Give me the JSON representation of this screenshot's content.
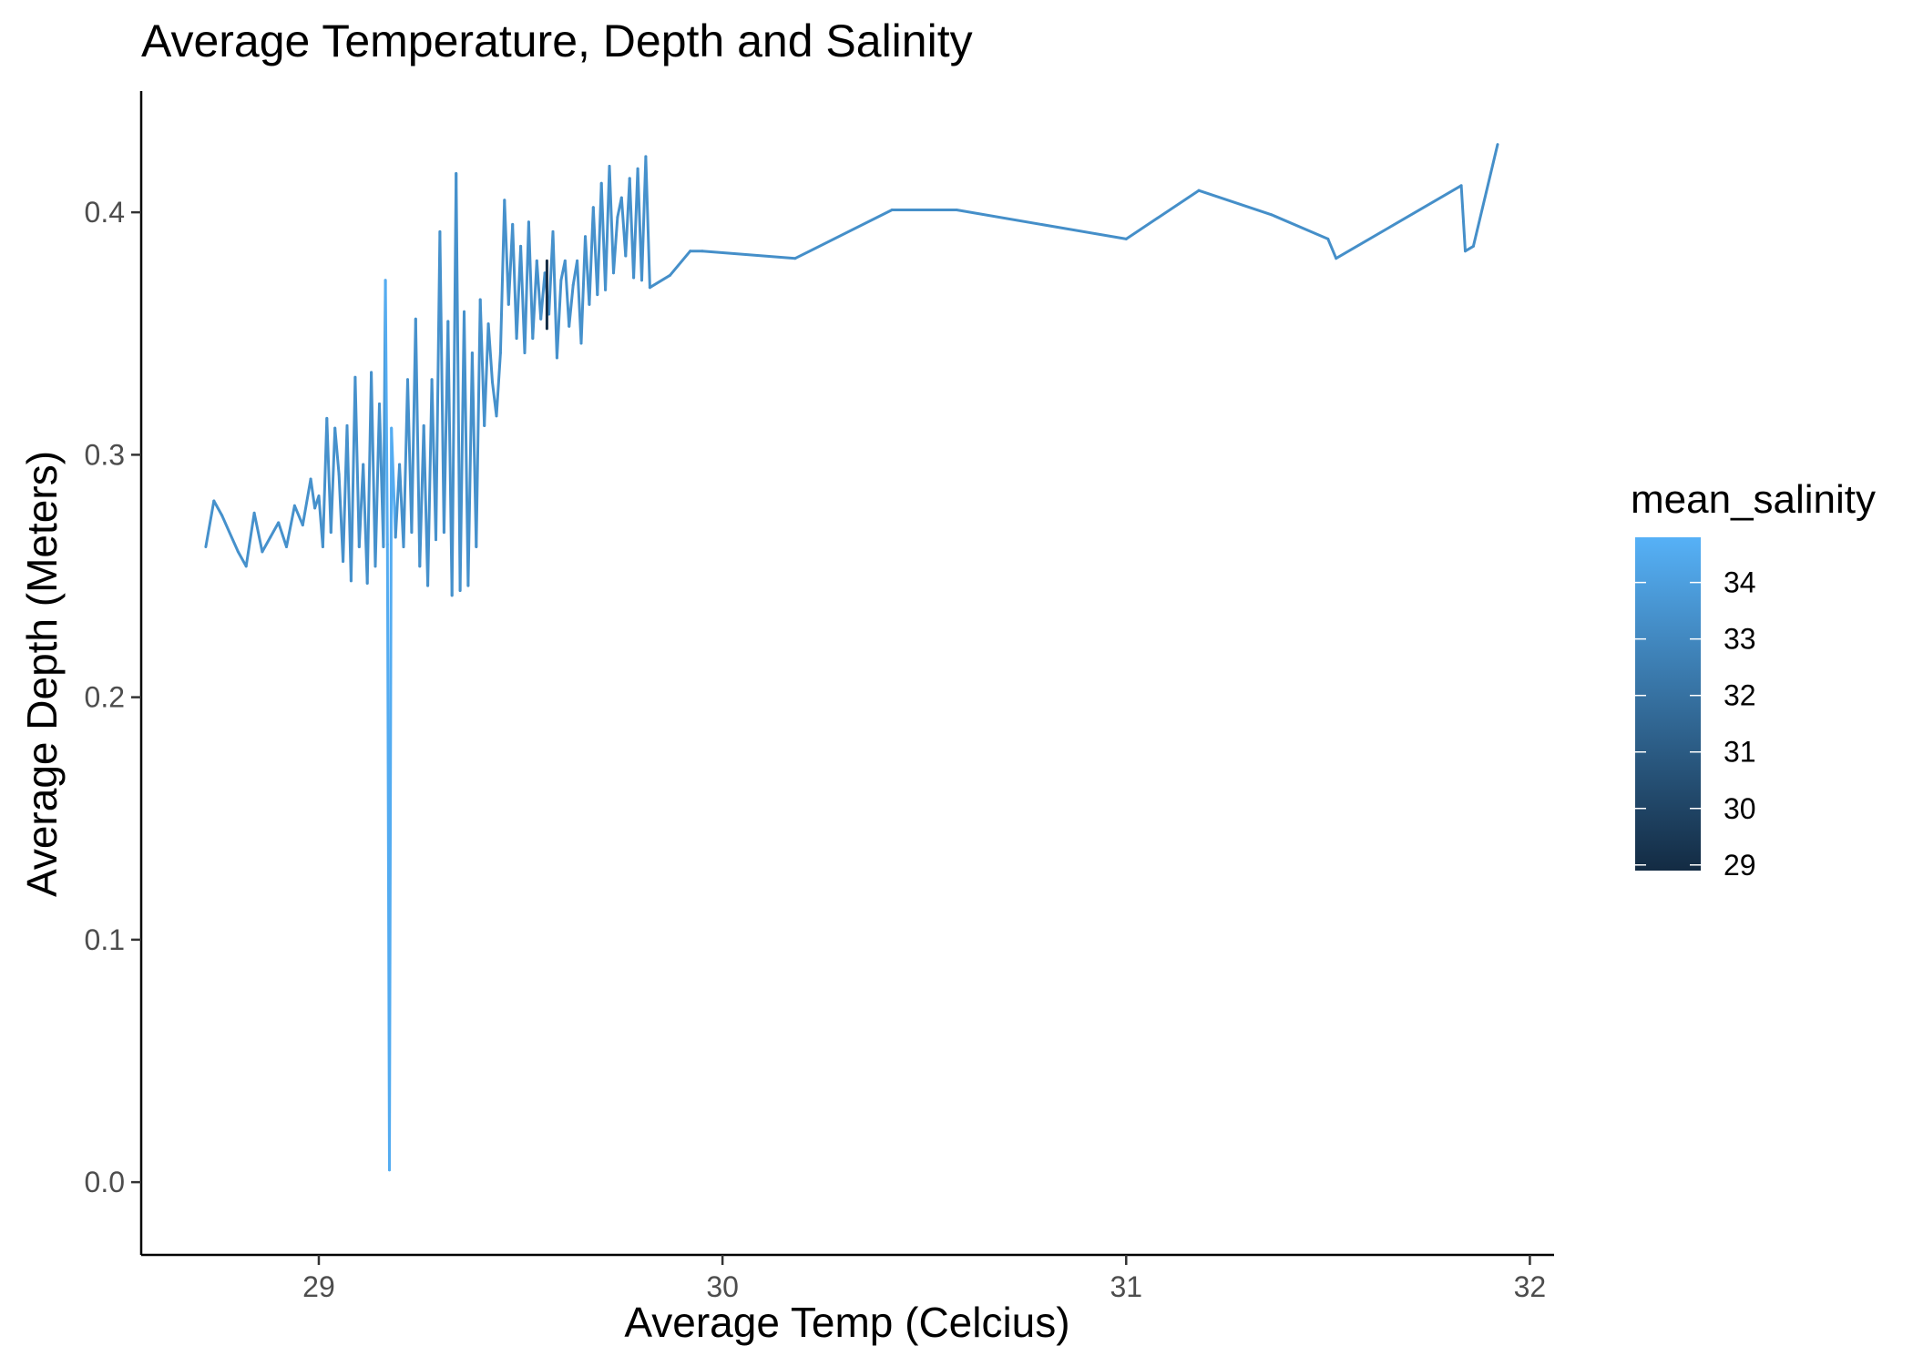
{
  "chart_data": {
    "type": "line",
    "title": "Average Temperature, Depth and Salinity",
    "xlabel": "Average Temp (Celcius)",
    "ylabel": "Average Depth (Meters)",
    "xlim": [
      28.56,
      32.06
    ],
    "ylim": [
      -0.03,
      0.45
    ],
    "x_ticks": [
      29,
      30,
      31,
      32
    ],
    "y_ticks": [
      0.0,
      0.1,
      0.2,
      0.3,
      0.4
    ],
    "x_tick_labels": [
      "29",
      "30",
      "31",
      "32"
    ],
    "y_tick_labels": [
      "0.0",
      "0.1",
      "0.2",
      "0.3",
      "0.4"
    ],
    "grid": false,
    "legend": {
      "title": "mean_salinity",
      "position": "right",
      "type": "colorbar",
      "range": [
        28.9,
        34.8
      ],
      "ticks": [
        29,
        30,
        31,
        32,
        33,
        34
      ],
      "tick_labels": [
        "29",
        "30",
        "31",
        "32",
        "33",
        "34"
      ],
      "color_low": "#132B43",
      "color_high": "#56B1F7"
    },
    "series": [
      {
        "x": [
          28.72,
          28.74,
          28.76,
          28.8,
          28.82,
          28.84,
          28.86,
          28.88,
          28.9,
          28.92,
          28.94,
          28.96,
          28.98,
          28.99,
          29.0,
          29.01,
          29.02,
          29.03,
          29.04,
          29.05,
          29.06,
          29.07,
          29.08,
          29.09,
          29.1,
          29.11,
          29.12,
          29.13,
          29.14,
          29.15,
          29.16,
          29.165,
          29.17,
          29.175,
          29.18,
          29.19,
          29.2,
          29.21,
          29.22,
          29.23,
          29.24,
          29.25,
          29.26,
          29.27,
          29.28,
          29.29,
          29.3,
          29.31,
          29.32,
          29.33,
          29.34,
          29.35,
          29.36,
          29.37,
          29.38,
          29.39,
          29.4,
          29.41,
          29.42,
          29.43,
          29.44,
          29.45,
          29.46,
          29.47,
          29.48,
          29.49,
          29.5,
          29.51,
          29.52,
          29.53,
          29.54,
          29.55,
          29.56,
          29.57,
          29.58,
          29.59,
          29.6,
          29.61,
          29.62,
          29.63,
          29.64,
          29.65,
          29.66,
          29.67,
          29.68,
          29.69,
          29.7,
          29.71,
          29.72,
          29.73,
          29.74,
          29.75,
          29.76,
          29.77,
          29.78,
          29.79,
          29.8,
          29.81,
          29.82,
          29.87,
          29.92,
          29.95,
          30.18,
          30.42,
          30.58,
          31.0,
          31.18,
          31.36,
          31.5,
          31.52,
          31.83,
          31.84,
          31.86,
          31.92
        ],
        "y": [
          0.262,
          0.281,
          0.275,
          0.26,
          0.254,
          0.276,
          0.26,
          0.266,
          0.272,
          0.262,
          0.279,
          0.271,
          0.29,
          0.278,
          0.283,
          0.262,
          0.315,
          0.268,
          0.311,
          0.292,
          0.256,
          0.312,
          0.248,
          0.332,
          0.262,
          0.296,
          0.247,
          0.334,
          0.254,
          0.321,
          0.262,
          0.372,
          0.263,
          0.005,
          0.311,
          0.266,
          0.296,
          0.262,
          0.331,
          0.268,
          0.356,
          0.254,
          0.312,
          0.246,
          0.331,
          0.265,
          0.392,
          0.268,
          0.355,
          0.242,
          0.416,
          0.244,
          0.359,
          0.246,
          0.342,
          0.262,
          0.364,
          0.312,
          0.354,
          0.33,
          0.316,
          0.342,
          0.405,
          0.362,
          0.395,
          0.348,
          0.386,
          0.342,
          0.396,
          0.348,
          0.38,
          0.356,
          0.375,
          0.358,
          0.392,
          0.34,
          0.372,
          0.38,
          0.353,
          0.37,
          0.38,
          0.346,
          0.39,
          0.362,
          0.402,
          0.366,
          0.412,
          0.368,
          0.419,
          0.375,
          0.398,
          0.406,
          0.382,
          0.414,
          0.373,
          0.418,
          0.372,
          0.423,
          0.369,
          0.374,
          0.384,
          0.384,
          0.381,
          0.401,
          0.401,
          0.389,
          0.409,
          0.399,
          0.389,
          0.381,
          0.411,
          0.384,
          0.386,
          0.428
        ],
        "salinity": [
          33.4,
          33.4,
          33.4,
          33.4,
          33.4,
          33.4,
          33.4,
          33.4,
          33.4,
          33.4,
          33.4,
          33.4,
          33.4,
          33.4,
          33.4,
          33.4,
          33.4,
          33.4,
          33.4,
          33.4,
          33.4,
          33.4,
          33.4,
          33.4,
          33.4,
          33.4,
          33.4,
          33.4,
          33.4,
          33.4,
          33.6,
          34.6,
          34.6,
          34.6,
          34.6,
          33.4,
          33.4,
          33.4,
          33.4,
          33.4,
          33.4,
          33.4,
          33.4,
          33.4,
          33.4,
          33.4,
          33.4,
          33.4,
          33.4,
          33.4,
          33.4,
          33.4,
          33.4,
          33.4,
          33.4,
          33.4,
          33.4,
          33.4,
          33.4,
          33.4,
          33.4,
          33.4,
          33.4,
          33.4,
          33.4,
          33.4,
          33.4,
          33.4,
          33.4,
          33.4,
          33.4,
          33.4,
          33.4,
          33.4,
          33.4,
          33.4,
          33.4,
          33.4,
          33.4,
          33.4,
          33.4,
          33.4,
          33.4,
          33.4,
          33.4,
          33.4,
          33.4,
          33.4,
          33.4,
          33.4,
          33.4,
          33.4,
          33.4,
          33.4,
          33.4,
          33.4,
          33.4,
          33.4,
          33.3,
          33.3,
          33.3,
          33.3,
          33.3,
          33.3,
          33.3,
          33.3,
          33.3,
          33.3,
          33.3,
          33.3,
          33.3,
          33.3,
          33.3,
          33.3
        ]
      },
      {
        "x": [
          29.565,
          29.565
        ],
        "y": [
          0.38,
          0.352
        ],
        "salinity": [
          28.9,
          28.9
        ]
      }
    ]
  }
}
